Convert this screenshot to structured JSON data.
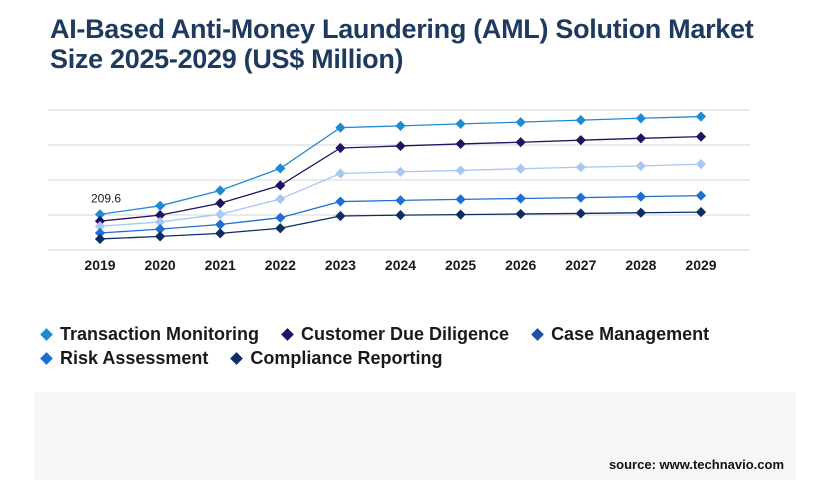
{
  "title": "AI-Based Anti-Money Laundering (AML) Solution Market Size 2025-2029 (US$ Million)",
  "source": "source: www.technavio.com",
  "chart_data": {
    "type": "line",
    "title": "AI-Based Anti-Money Laundering (AML) Solution Market Size 2025-2029 (US$ Million)",
    "x": [
      "2019",
      "2020",
      "2021",
      "2022",
      "2023",
      "2024",
      "2025",
      "2026",
      "2027",
      "2028",
      "2029"
    ],
    "ylim": [
      0,
      1000
    ],
    "grid": true,
    "legend_position": "bottom-left",
    "annotations": [
      {
        "x": "2019",
        "label": "209.6"
      }
    ],
    "series": [
      {
        "name": "Transaction Monitoring",
        "color": "#1f8ad4",
        "values": [
          209.6,
          260,
          350,
          480,
          720,
          730,
          742,
          752,
          764,
          775,
          785
        ]
      },
      {
        "name": "Customer Due Diligence",
        "color": "#1f1460",
        "values": [
          170,
          205,
          275,
          380,
          600,
          612,
          624,
          634,
          646,
          657,
          667
        ]
      },
      {
        "name": "Case Management",
        "color": "#a9c8f0",
        "values": [
          140,
          165,
          210,
          300,
          450,
          460,
          468,
          478,
          487,
          494,
          505
        ]
      },
      {
        "name": "Risk Assessment",
        "color": "#1e6fd1",
        "values": [
          100,
          123,
          150,
          190,
          285,
          292,
          298,
          303,
          308,
          314,
          320
        ]
      },
      {
        "name": "Compliance Reporting",
        "color": "#0c2e63",
        "values": [
          65,
          80,
          98,
          128,
          200,
          205,
          208,
          212,
          215,
          219,
          223
        ]
      }
    ]
  }
}
